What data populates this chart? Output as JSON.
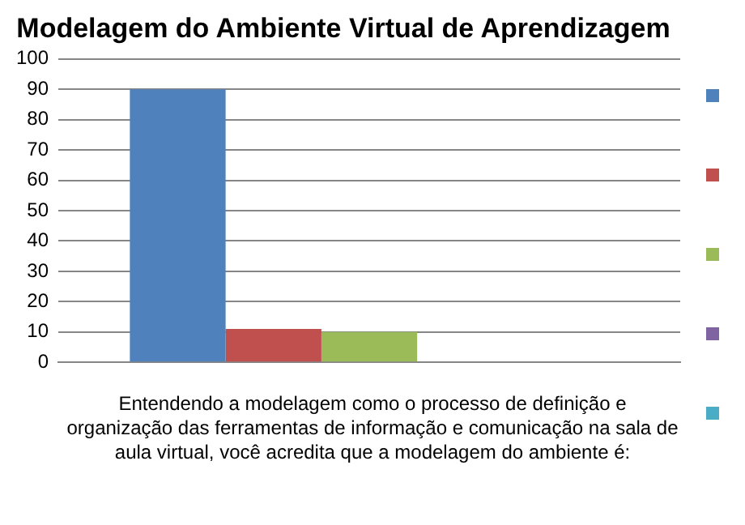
{
  "chart_data": {
    "type": "bar",
    "title": "Modelagem do Ambiente Virtual de Aprendizagem",
    "xlabel": "Entendendo a modelagem como o processo de definição e organização das ferramentas de informação e comunicação na sala de aula virtual, você acredita que a modelagem do ambiente é:",
    "categories": [
      null
    ],
    "series": [
      {
        "color": "#4f81bd",
        "values": [
          90
        ]
      },
      {
        "color": "#c0504d",
        "values": [
          11
        ]
      },
      {
        "color": "#9bbb59",
        "values": [
          10
        ]
      },
      {
        "color": "#8064a2",
        "values": [
          0
        ]
      },
      {
        "color": "#4bacc6",
        "values": [
          0
        ]
      }
    ],
    "ylim": [
      0,
      100
    ],
    "yticks": [
      0,
      10,
      20,
      30,
      40,
      50,
      60,
      70,
      80,
      90,
      100
    ],
    "grid": "y"
  }
}
